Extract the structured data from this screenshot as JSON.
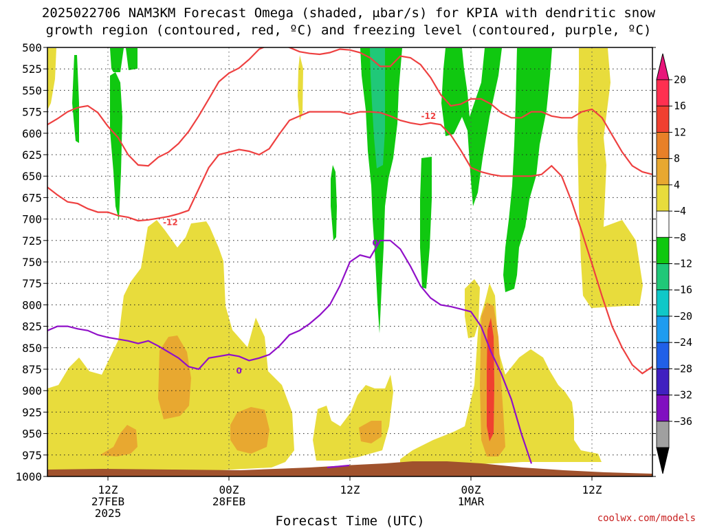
{
  "chart_data": {
    "type": "heatmap",
    "title_line1": "2025022706 NAM3KM Forecast Omega (shaded, μbar/s) for KPIA with dendritic snow",
    "title_line2": "growth region (contoured, red, ºC) and freezing level (contoured, purple, ºC)",
    "xlabel": "Forecast Time (UTC)",
    "credit": "coolwx.com/models",
    "y_axis": {
      "unit": "hPa",
      "ticks": [
        500,
        525,
        550,
        575,
        600,
        625,
        650,
        675,
        700,
        725,
        750,
        775,
        800,
        825,
        850,
        875,
        900,
        925,
        950,
        975,
        1000
      ],
      "range": [
        1000,
        500
      ]
    },
    "x_axis": {
      "unit": "hours from 2025-02-27 06Z",
      "range": [
        0,
        60
      ],
      "ticks": [
        {
          "hour": 6,
          "line1": "12Z",
          "line2": "27FEB",
          "line3": "2025"
        },
        {
          "hour": 18,
          "line1": "00Z",
          "line2": "28FEB",
          "line3": ""
        },
        {
          "hour": 30,
          "line1": "12Z",
          "line2": "",
          "line3": ""
        },
        {
          "hour": 42,
          "line1": "00Z",
          "line2": "1MAR",
          "line3": ""
        },
        {
          "hour": 54,
          "line1": "12Z",
          "line2": "",
          "line3": ""
        }
      ]
    },
    "grid": true,
    "colorbar": {
      "labels": [
        "20",
        "16",
        "12",
        "8",
        "4",
        "−4",
        "−8",
        "−12",
        "−16",
        "−20",
        "−24",
        "−28",
        "−32",
        "−36"
      ],
      "colors": [
        "#ff3050",
        "#f04030",
        "#e88028",
        "#e8a830",
        "#e8dc3c",
        "#ffffff",
        "#10c810",
        "#20c878",
        "#10c8c8",
        "#1e9cf0",
        "#2060e8",
        "#4020c0",
        "#8010c0",
        "#a0a0a0",
        "#000000"
      ],
      "top_arrow": "#e8157a",
      "bottom_arrow": "#000000"
    },
    "contours": {
      "red_labels": [
        "-12",
        "-12"
      ],
      "purple_labels": [
        "0",
        "0"
      ],
      "dendritic_top": [
        [
          0,
          590
        ],
        [
          1,
          583
        ],
        [
          2,
          575
        ],
        [
          3,
          570
        ],
        [
          4,
          568
        ],
        [
          5,
          576
        ],
        [
          6,
          592
        ],
        [
          7,
          605
        ],
        [
          8,
          625
        ],
        [
          9,
          637
        ],
        [
          10,
          638
        ],
        [
          11,
          628
        ],
        [
          12,
          622
        ],
        [
          13,
          612
        ],
        [
          14,
          598
        ],
        [
          15,
          580
        ],
        [
          16,
          560
        ],
        [
          17,
          540
        ],
        [
          18,
          530
        ],
        [
          19,
          524
        ],
        [
          20,
          514
        ],
        [
          21,
          502
        ],
        [
          22,
          497
        ],
        [
          23,
          496
        ],
        [
          24,
          500
        ],
        [
          25,
          505
        ],
        [
          26,
          507
        ],
        [
          27,
          508
        ],
        [
          28,
          506
        ],
        [
          29,
          502
        ],
        [
          30,
          503
        ],
        [
          31,
          506
        ],
        [
          32,
          512
        ],
        [
          33,
          522
        ],
        [
          34,
          522
        ],
        [
          35,
          510
        ],
        [
          36,
          512
        ],
        [
          37,
          520
        ],
        [
          38,
          535
        ],
        [
          39,
          555
        ],
        [
          40,
          568
        ],
        [
          41,
          566
        ],
        [
          42,
          560
        ],
        [
          43,
          560
        ],
        [
          44,
          566
        ],
        [
          45,
          576
        ],
        [
          46,
          582
        ],
        [
          47,
          582
        ],
        [
          48,
          575
        ],
        [
          49,
          575
        ],
        [
          50,
          580
        ],
        [
          51,
          582
        ],
        [
          52,
          582
        ],
        [
          53,
          575
        ],
        [
          54,
          572
        ],
        [
          55,
          582
        ],
        [
          56,
          602
        ],
        [
          57,
          622
        ],
        [
          58,
          638
        ],
        [
          59,
          645
        ],
        [
          60,
          648
        ]
      ],
      "dendritic_bottom": [
        [
          0,
          663
        ],
        [
          1,
          672
        ],
        [
          2,
          680
        ],
        [
          3,
          682
        ],
        [
          4,
          688
        ],
        [
          5,
          692
        ],
        [
          6,
          692
        ],
        [
          7,
          696
        ],
        [
          8,
          698
        ],
        [
          9,
          702
        ],
        [
          10,
          701
        ],
        [
          11,
          699
        ],
        [
          12,
          697
        ],
        [
          13,
          694
        ],
        [
          14,
          690
        ],
        [
          15,
          665
        ],
        [
          16,
          640
        ],
        [
          17,
          625
        ],
        [
          18,
          622
        ],
        [
          19,
          619
        ],
        [
          20,
          621
        ],
        [
          21,
          625
        ],
        [
          22,
          618
        ],
        [
          23,
          601
        ],
        [
          24,
          585
        ],
        [
          25,
          580
        ],
        [
          26,
          575
        ],
        [
          27,
          575
        ],
        [
          28,
          575
        ],
        [
          29,
          575
        ],
        [
          30,
          578
        ],
        [
          31,
          575
        ],
        [
          32,
          575
        ],
        [
          33,
          576
        ],
        [
          34,
          580
        ],
        [
          35,
          585
        ],
        [
          36,
          588
        ],
        [
          37,
          590
        ],
        [
          38,
          588
        ],
        [
          39,
          590
        ],
        [
          40,
          602
        ],
        [
          41,
          620
        ],
        [
          42,
          640
        ],
        [
          43,
          645
        ],
        [
          44,
          648
        ],
        [
          45,
          650
        ],
        [
          46,
          650
        ],
        [
          47,
          650
        ],
        [
          48,
          650
        ],
        [
          49,
          648
        ],
        [
          50,
          638
        ],
        [
          51,
          650
        ],
        [
          52,
          680
        ],
        [
          53,
          715
        ],
        [
          54,
          752
        ],
        [
          55,
          790
        ],
        [
          56,
          825
        ],
        [
          57,
          850
        ],
        [
          58,
          870
        ],
        [
          59,
          880
        ],
        [
          60,
          872
        ]
      ],
      "freezing_level": [
        [
          0,
          830
        ],
        [
          1,
          825
        ],
        [
          2,
          825
        ],
        [
          3,
          828
        ],
        [
          4,
          830
        ],
        [
          5,
          835
        ],
        [
          6,
          838
        ],
        [
          7,
          840
        ],
        [
          8,
          842
        ],
        [
          9,
          845
        ],
        [
          10,
          842
        ],
        [
          11,
          848
        ],
        [
          12,
          855
        ],
        [
          13,
          862
        ],
        [
          14,
          872
        ],
        [
          15,
          875
        ],
        [
          16,
          862
        ],
        [
          17,
          860
        ],
        [
          18,
          858
        ],
        [
          19,
          860
        ],
        [
          20,
          865
        ],
        [
          21,
          862
        ],
        [
          22,
          858
        ],
        [
          23,
          848
        ],
        [
          24,
          835
        ],
        [
          25,
          830
        ],
        [
          26,
          822
        ],
        [
          27,
          812
        ],
        [
          28,
          800
        ],
        [
          29,
          778
        ],
        [
          30,
          750
        ],
        [
          31,
          742
        ],
        [
          32,
          745
        ],
        [
          33,
          725
        ],
        [
          34,
          725
        ],
        [
          35,
          735
        ],
        [
          36,
          755
        ],
        [
          37,
          778
        ],
        [
          38,
          792
        ],
        [
          39,
          800
        ],
        [
          40,
          802
        ],
        [
          41,
          805
        ],
        [
          42,
          808
        ],
        [
          43,
          825
        ],
        [
          44,
          855
        ],
        [
          45,
          880
        ],
        [
          46,
          910
        ],
        [
          47,
          950
        ],
        [
          48,
          985
        ]
      ]
    },
    "terrain_color": "#a0522d"
  }
}
